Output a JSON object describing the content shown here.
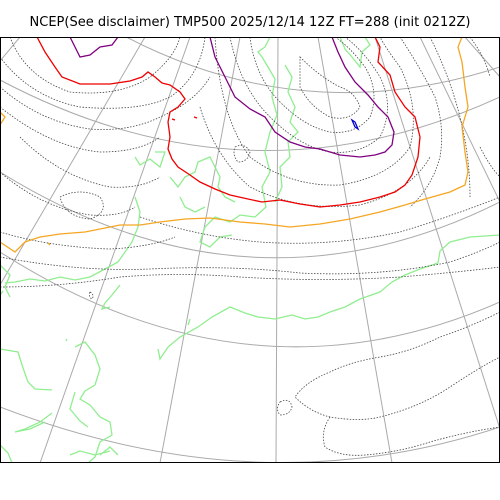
{
  "map": {
    "title": "NCEP(See disclaimer) TMP500 2025/12/14 12Z FT=288 (init 0212Z)"
  },
  "colors": {
    "graticule": "#aaaaaa",
    "coastline": "#90ee90",
    "contour_minor": "#444444",
    "contour_red": "#ee0000",
    "contour_orange": "#f5a623",
    "contour_purple": "#800080",
    "contour_blue": "#0000cc",
    "frame": "#000000"
  },
  "layers": [
    "graticule",
    "coastline",
    "dotted-isotherms",
    "red-isotherm",
    "orange-isotherm",
    "purple-isotherm",
    "blue-isotherm"
  ]
}
